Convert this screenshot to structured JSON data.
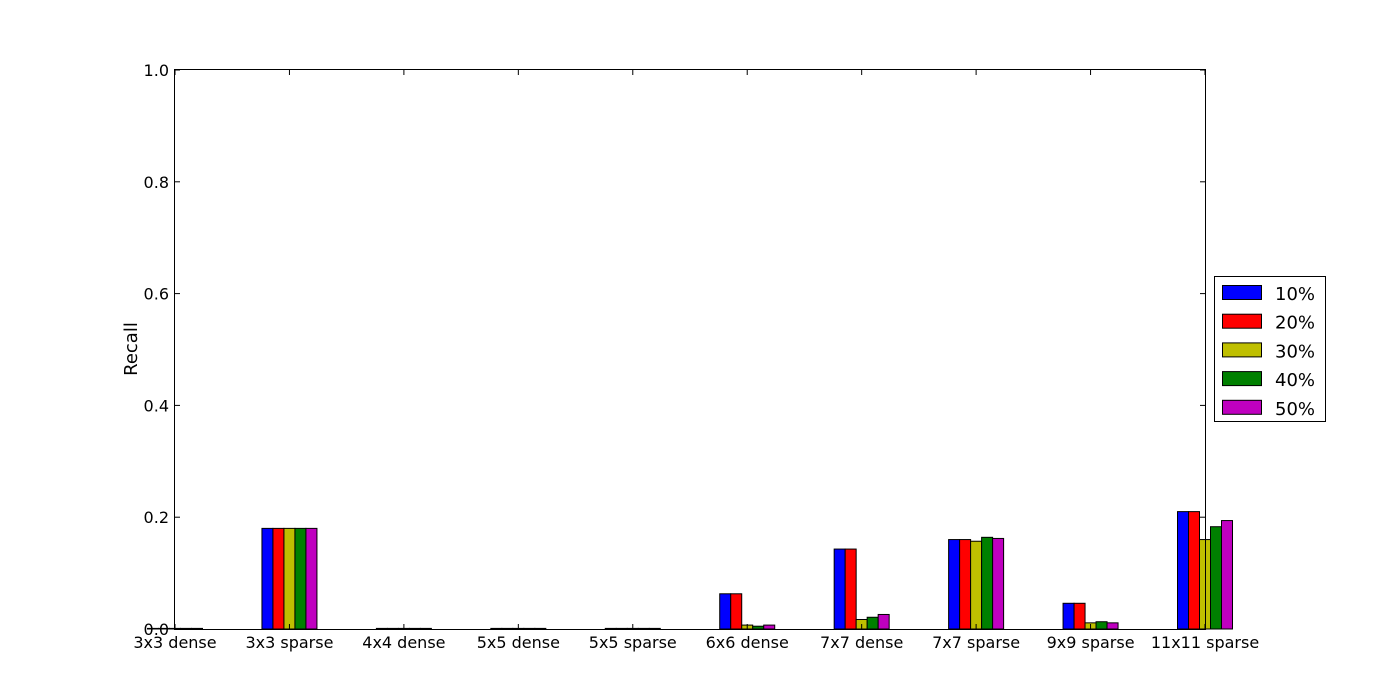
{
  "chart_data": {
    "type": "bar",
    "title": "",
    "xlabel": "",
    "ylabel": "Recall",
    "ylim": [
      0,
      1.0
    ],
    "yticks": [
      "0.0",
      "0.2",
      "0.4",
      "0.6",
      "0.8",
      "1.0"
    ],
    "grid": false,
    "legend_position": "right",
    "categories": [
      "3x3 dense",
      "3x3 sparse",
      "4x4 dense",
      "5x5 dense",
      "5x5 sparse",
      "6x6 dense",
      "7x7 dense",
      "7x7 sparse",
      "9x9 sparse",
      "11x11 sparse"
    ],
    "series": [
      {
        "name": "10%",
        "color": "#0000ff",
        "values": [
          0.0,
          0.18,
          0.0,
          0.0,
          0.0,
          0.063,
          0.143,
          0.16,
          0.046,
          0.21
        ]
      },
      {
        "name": "20%",
        "color": "#ff0000",
        "values": [
          0.0,
          0.18,
          0.0,
          0.0,
          0.0,
          0.063,
          0.143,
          0.16,
          0.046,
          0.21
        ]
      },
      {
        "name": "30%",
        "color": "#bfbf00",
        "values": [
          0.0,
          0.18,
          0.0,
          0.0,
          0.0,
          0.007,
          0.017,
          0.157,
          0.011,
          0.16
        ]
      },
      {
        "name": "40%",
        "color": "#008000",
        "values": [
          0.0,
          0.18,
          0.0,
          0.0,
          0.0,
          0.005,
          0.021,
          0.164,
          0.013,
          0.183
        ]
      },
      {
        "name": "50%",
        "color": "#bf00bf",
        "values": [
          0.0,
          0.18,
          0.0,
          0.0,
          0.0,
          0.007,
          0.026,
          0.162,
          0.011,
          0.194
        ]
      }
    ]
  }
}
